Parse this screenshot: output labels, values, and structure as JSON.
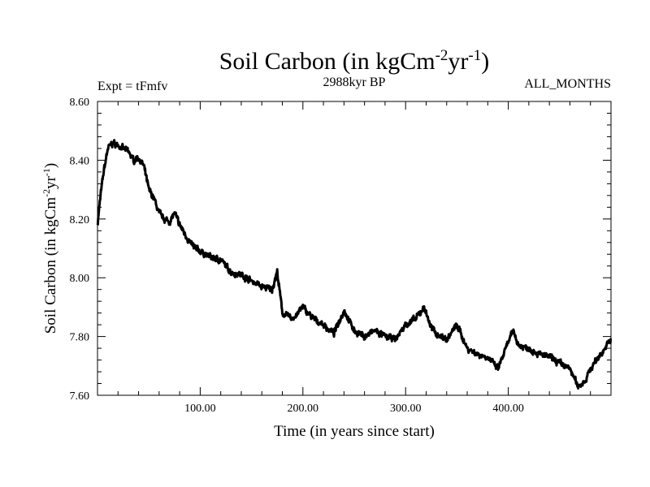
{
  "chart_data": {
    "type": "line",
    "title": {
      "prefix": "Soil Carbon (in kgCm",
      "sup1": "-2",
      "mid": "yr",
      "sup2": "-1",
      "suffix": ")"
    },
    "subtitle_left": "Expt = tFmfv",
    "subtitle_center": "2988kyr BP",
    "subtitle_right": "ALL_MONTHS",
    "xlabel": "Time (in years since start)",
    "ylabel": {
      "prefix": "Soil Carbon (in kgCm",
      "sup1": "-2",
      "mid": "yr",
      "sup2": "-1",
      "suffix": ")"
    },
    "xlim": [
      0,
      500
    ],
    "ylim": [
      7.6,
      8.6
    ],
    "x_ticks": [
      100,
      200,
      300,
      400
    ],
    "x_tick_labels": [
      "100.00",
      "200.00",
      "300.00",
      "400.00"
    ],
    "y_ticks": [
      7.6,
      7.8,
      8.0,
      8.2,
      8.4,
      8.6
    ],
    "y_tick_labels": [
      "7.60",
      "7.80",
      "8.00",
      "8.20",
      "8.40",
      "8.60"
    ],
    "series": [
      {
        "name": "Soil Carbon",
        "color": "#000000",
        "x": [
          0,
          3,
          6,
          10,
          15,
          20,
          25,
          30,
          35,
          40,
          45,
          50,
          55,
          60,
          65,
          70,
          75,
          80,
          85,
          90,
          95,
          100,
          110,
          120,
          130,
          140,
          150,
          160,
          170,
          175,
          180,
          190,
          200,
          210,
          220,
          230,
          240,
          250,
          260,
          270,
          280,
          290,
          300,
          310,
          318,
          325,
          330,
          340,
          350,
          360,
          370,
          380,
          390,
          400,
          405,
          410,
          420,
          430,
          440,
          450,
          460,
          468,
          475,
          480,
          490,
          500
        ],
        "y": [
          8.18,
          8.28,
          8.36,
          8.44,
          8.46,
          8.45,
          8.44,
          8.43,
          8.4,
          8.41,
          8.38,
          8.3,
          8.27,
          8.22,
          8.2,
          8.19,
          8.22,
          8.18,
          8.15,
          8.12,
          8.1,
          8.09,
          8.07,
          8.06,
          8.02,
          8.01,
          7.99,
          7.97,
          7.96,
          8.02,
          7.88,
          7.86,
          7.9,
          7.86,
          7.84,
          7.81,
          7.89,
          7.82,
          7.8,
          7.82,
          7.8,
          7.79,
          7.84,
          7.86,
          7.9,
          7.83,
          7.81,
          7.79,
          7.84,
          7.76,
          7.74,
          7.73,
          7.69,
          7.78,
          7.82,
          7.77,
          7.76,
          7.74,
          7.73,
          7.71,
          7.69,
          7.63,
          7.65,
          7.69,
          7.74,
          7.79
        ]
      }
    ]
  }
}
